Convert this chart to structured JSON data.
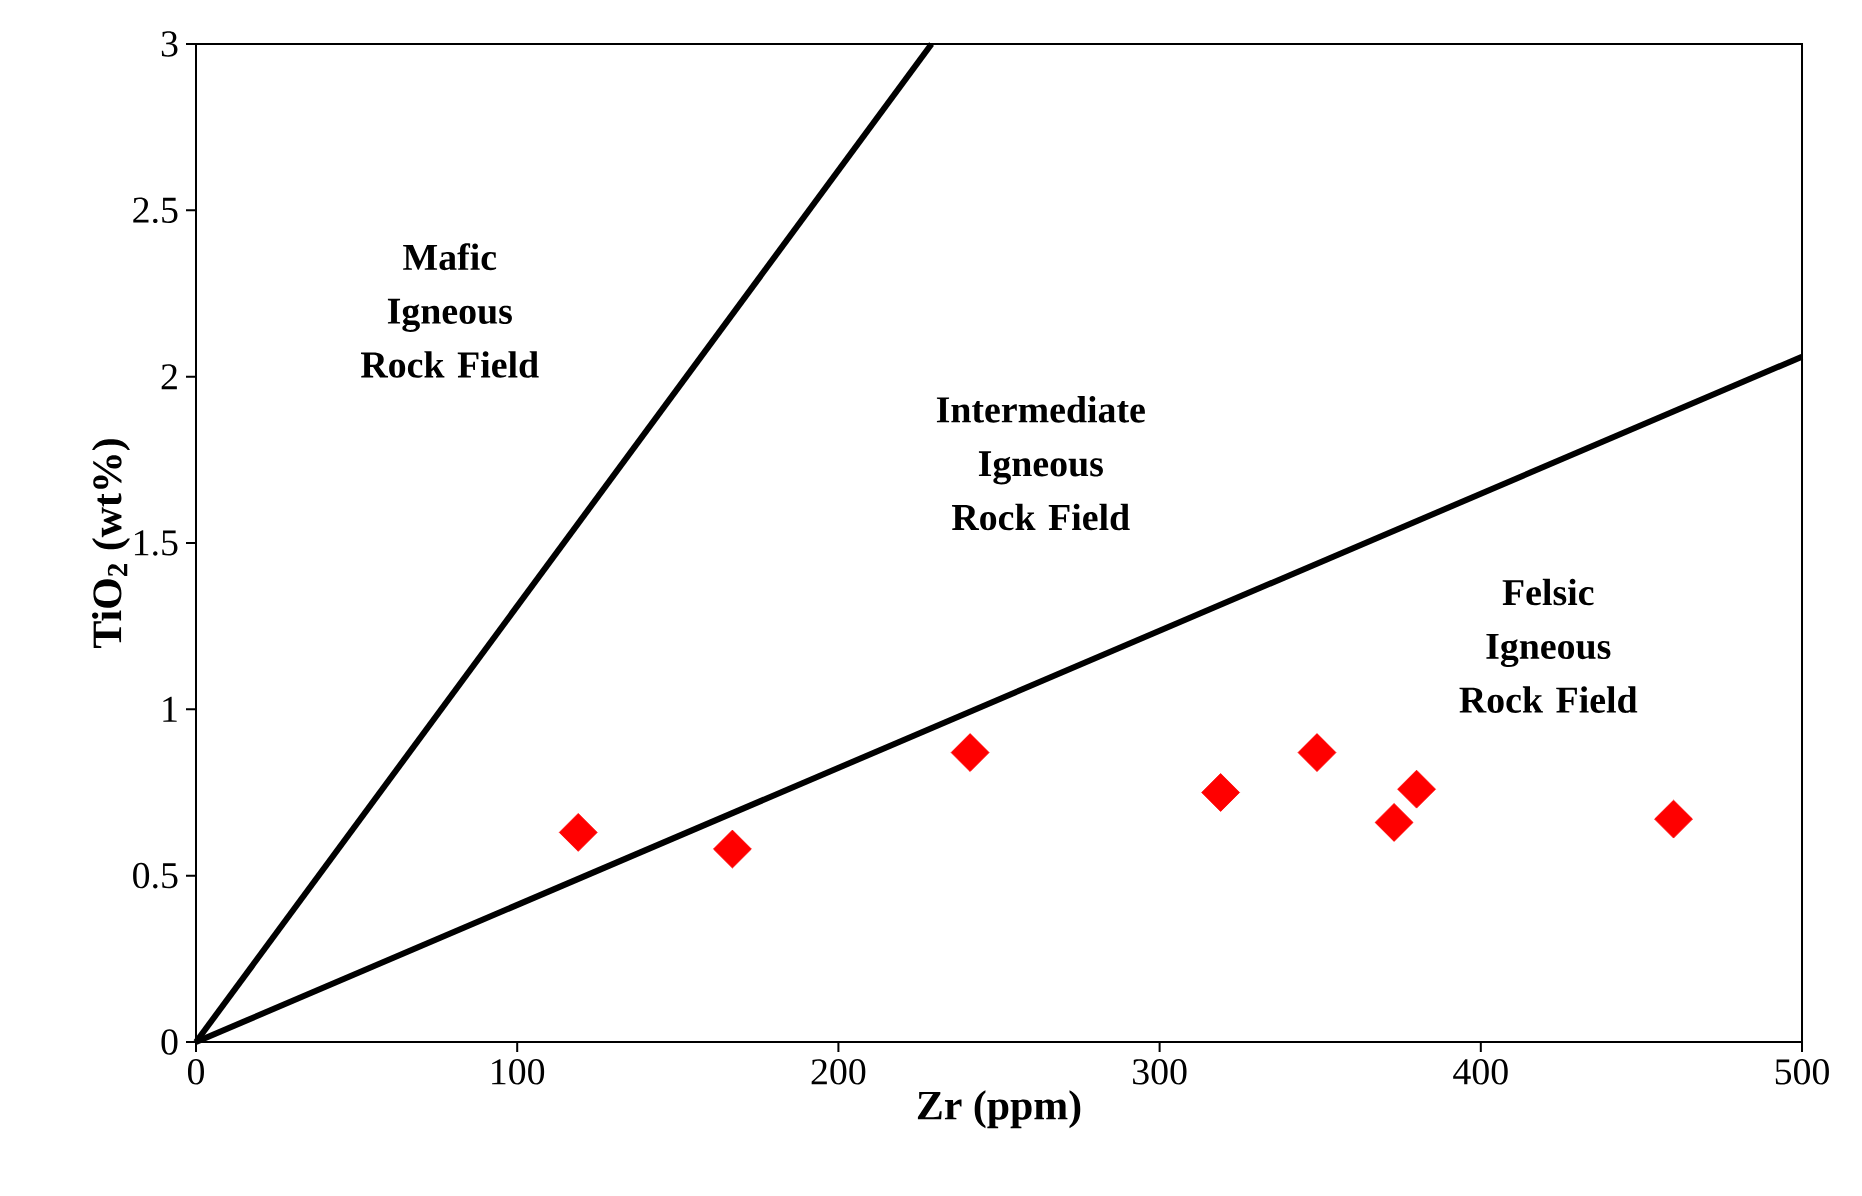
{
  "chart_data": {
    "type": "scatter",
    "xlabel": "Zr (ppm)",
    "ylabel": "TiO$_{2}$ (wt%)",
    "xlim": [
      0,
      500
    ],
    "ylim": [
      0,
      3
    ],
    "xticks": [
      0,
      100,
      200,
      300,
      400,
      500
    ],
    "yticks": [
      0,
      0.5,
      1,
      1.5,
      2,
      2.5,
      3
    ],
    "grid": false,
    "marker": "diamond",
    "series": [
      {
        "type": "line",
        "color": "#000000",
        "marker": "none",
        "x": [
          0,
          229
        ],
        "values": [
          0,
          3
        ]
      },
      {
        "type": "line",
        "color": "#000000",
        "marker": "none",
        "x": [
          0,
          500
        ],
        "values": [
          0,
          2.06
        ]
      },
      {
        "color": "#ff0000",
        "x": [
          119,
          167,
          241,
          319,
          349,
          373,
          380,
          460
        ],
        "values": [
          0.63,
          0.58,
          0.87,
          0.75,
          0.87,
          0.66,
          0.76,
          0.67
        ]
      }
    ],
    "annotations": [
      "Mafic Igneous Rock Field",
      "Intermediate Igneous Rock Field",
      "Felsic Igneous Rock Field"
    ]
  }
}
